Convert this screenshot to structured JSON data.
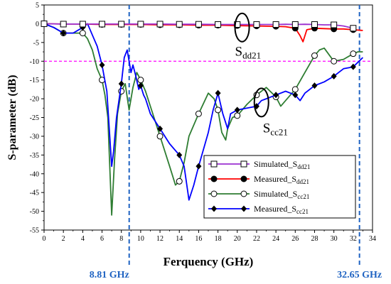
{
  "chart_data": {
    "type": "line",
    "title": "",
    "xlabel": "Ferquency (GHz)",
    "ylabel": "S-parameter (dB)",
    "xlim": [
      0,
      34
    ],
    "ylim": [
      -55,
      5
    ],
    "xticks": [
      0,
      2,
      4,
      6,
      8,
      10,
      12,
      14,
      16,
      18,
      20,
      22,
      24,
      26,
      28,
      30,
      32,
      34
    ],
    "yticks": [
      5,
      0,
      -5,
      -10,
      -15,
      -20,
      -25,
      -30,
      -35,
      -40,
      -45,
      -50,
      -55
    ],
    "grid": false,
    "legend_position": "bottom-right",
    "reference_lines": {
      "horizontal": [
        {
          "y": -10,
          "color": "#ff00ff",
          "style": "dashed"
        }
      ],
      "vertical": [
        {
          "x": 8.81,
          "label": "8.81 GHz",
          "color": "#1f63c2",
          "style": "dashed"
        },
        {
          "x": 32.65,
          "label": "32.65 GHz",
          "color": "#1f63c2",
          "style": "dashed"
        }
      ]
    },
    "annotations": [
      {
        "base": "S",
        "sub": "dd21",
        "anchor_x": 20.5,
        "anchor_y": -1
      },
      {
        "base": "S",
        "sub": "cc21",
        "anchor_x": 22.5,
        "anchor_y": -21
      }
    ],
    "series": [
      {
        "name": "Simulated_Sdd21",
        "legend_base": "Simulated_S",
        "legend_sub": "dd21",
        "color": "#9b30d0",
        "marker": "open-square",
        "x": [
          0,
          2,
          4,
          6,
          8,
          10,
          12,
          14,
          16,
          18,
          20,
          22,
          24,
          25,
          26,
          27,
          28,
          29,
          30,
          31,
          32
        ],
        "y": [
          0,
          -0.1,
          -0.1,
          -0.1,
          -0.1,
          -0.1,
          -0.1,
          -0.15,
          -0.15,
          -0.2,
          -0.2,
          -0.2,
          -0.2,
          -0.15,
          -0.2,
          -0.15,
          -0.2,
          -0.3,
          -0.3,
          -0.6,
          -1.2
        ],
        "marker_x": [
          0,
          2,
          4,
          6,
          8,
          10,
          12,
          14,
          16,
          18,
          20,
          22,
          24,
          26,
          28,
          30,
          32
        ]
      },
      {
        "name": "Measured_Sdd21",
        "legend_base": "Measured_S",
        "legend_sub": "dd21",
        "color": "#ff0000",
        "marker": "filled-circle",
        "x": [
          0,
          2,
          4,
          6,
          8,
          10,
          12,
          14,
          16,
          18,
          20,
          22,
          24,
          25,
          26,
          26.5,
          26.8,
          27.2,
          28,
          29,
          30,
          31,
          32,
          33
        ],
        "y": [
          0,
          -0.1,
          -0.1,
          -0.2,
          -0.2,
          -0.2,
          -0.3,
          -0.3,
          -0.4,
          -0.4,
          -0.5,
          -0.6,
          -0.7,
          -0.8,
          -1.2,
          -3.2,
          -4.8,
          -1.6,
          -1.2,
          -1.3,
          -1.4,
          -1.4,
          -1.6,
          -1.8
        ],
        "marker_x": [
          0,
          2,
          4,
          6,
          8,
          10,
          12,
          14,
          16,
          18,
          20,
          22,
          24,
          26,
          28,
          30,
          32
        ]
      },
      {
        "name": "Simulated_Scc21",
        "legend_base": "Simulated_S",
        "legend_sub": "cc21",
        "color": "#2e7d32",
        "marker": "open-circle",
        "x": [
          0,
          1,
          2,
          3,
          4,
          4.5,
          5,
          5.5,
          6,
          6.3,
          6.6,
          6.8,
          7,
          7.3,
          7.6,
          8,
          8.4,
          8.8,
          9.2,
          9.6,
          10,
          10.5,
          11,
          12,
          13,
          13.6,
          14,
          14.5,
          15,
          16,
          17,
          17.6,
          18,
          18.4,
          18.8,
          19,
          19.5,
          20,
          21,
          22,
          23,
          24,
          24.5,
          25,
          26,
          27,
          28,
          28.5,
          29,
          30,
          31,
          32,
          32.5,
          33
        ],
        "y": [
          0,
          -1,
          -2.5,
          -2.5,
          -2.5,
          -4,
          -7,
          -12,
          -15,
          -19,
          -25,
          -38,
          -51,
          -36,
          -24,
          -18,
          -16,
          -23,
          -17,
          -13,
          -15,
          -18,
          -22,
          -30,
          -38,
          -43,
          -42,
          -37,
          -30,
          -24,
          -18.5,
          -20,
          -23,
          -29,
          -31,
          -28,
          -25,
          -24.5,
          -21.5,
          -19,
          -17,
          -19.5,
          -22,
          -20.5,
          -17.5,
          -13,
          -8.5,
          -7,
          -6.5,
          -10,
          -9.5,
          -8,
          -7.5,
          -7.5
        ],
        "marker_x": [
          0,
          2,
          4,
          6,
          8,
          10,
          12,
          14,
          16,
          18,
          20,
          22,
          24,
          26,
          28,
          30,
          32
        ]
      },
      {
        "name": "Measured_Scc21",
        "legend_base": "Measured_S",
        "legend_sub": "cc21",
        "color": "#0000ff",
        "marker": "filled-diamond",
        "x": [
          0,
          1,
          2,
          3,
          4,
          4.5,
          5,
          5.5,
          6,
          6.5,
          7,
          7.2,
          7.5,
          8,
          8.3,
          8.6,
          9,
          9.2,
          9.5,
          9.8,
          10,
          10.3,
          10.5,
          11,
          12,
          13,
          14,
          14.5,
          15,
          15.5,
          16,
          17,
          17.5,
          18,
          18.5,
          19,
          19.3,
          20,
          21,
          22,
          22.5,
          23,
          24,
          25,
          26,
          26.5,
          27,
          28,
          29,
          30,
          30.5,
          31,
          32,
          33
        ],
        "y": [
          0,
          -1,
          -2.5,
          -2.5,
          -1,
          0,
          -3,
          -6,
          -11,
          -18,
          -38,
          -34,
          -25,
          -16,
          -9,
          -7,
          -13,
          -11,
          -14,
          -17.5,
          -16.5,
          -19,
          -20,
          -24,
          -28,
          -32,
          -35,
          -38,
          -47,
          -43,
          -38,
          -29,
          -23,
          -18.5,
          -24,
          -28,
          -24,
          -23,
          -22.5,
          -22,
          -20.5,
          -20,
          -19,
          -18,
          -19,
          -20.5,
          -18.5,
          -16.5,
          -15.5,
          -14,
          -13,
          -12,
          -11.5,
          -9
        ],
        "marker_x": [
          0,
          2,
          4,
          6,
          8,
          10,
          12,
          14,
          16,
          18,
          20,
          22,
          24,
          26,
          28,
          30,
          32
        ]
      }
    ]
  }
}
